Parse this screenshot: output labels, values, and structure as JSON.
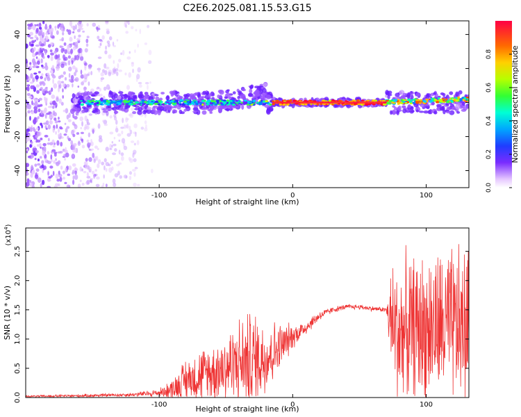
{
  "title": "C2E6.2025.081.15.53.G15",
  "colors": {
    "snr_line": "#ee3333",
    "axis": "#000000"
  },
  "chart_data": [
    {
      "type": "heatmap",
      "xlabel": "Height of straight line (km)",
      "ylabel": "Frequency (Hz)",
      "xlim": [
        -200,
        132
      ],
      "ylim": [
        -50,
        48
      ],
      "xticks": [
        -100,
        0,
        100
      ],
      "yticks": [
        -40,
        -20,
        0,
        20,
        40
      ],
      "colorbar": {
        "label": "Normalized spectral amplitude",
        "range": [
          0,
          1
        ],
        "ticks": [
          0.0,
          0.2,
          0.4,
          0.6,
          0.8
        ]
      },
      "description": "Scattered weak returns below about -110 km; concentrated band near 0 Hz from -160 km to 132 km; strongest (red) between -15 and 70 km"
    },
    {
      "type": "line",
      "xlabel": "Height of straight line (km)",
      "ylabel": "SNR (10 * v/v)",
      "scale_label": "(x10",
      "scale_exp": "4",
      "scale_close": ")",
      "xlim": [
        -200,
        132
      ],
      "ylim": [
        0,
        2.9
      ],
      "xticks": [
        -100,
        0,
        100
      ],
      "yticks": [
        "0.0",
        "0.5",
        "1.0",
        "1.5",
        "2.0",
        "2.5"
      ],
      "envelope": {
        "x": [
          -200,
          -160,
          -120,
          -100,
          -90,
          -80,
          -60,
          -40,
          -30,
          -20,
          -10,
          0,
          10,
          20,
          30,
          40,
          50,
          60,
          70,
          75,
          80,
          100,
          120,
          132
        ],
        "mean": [
          0.02,
          0.03,
          0.05,
          0.08,
          0.15,
          0.3,
          0.45,
          0.6,
          0.65,
          0.7,
          0.85,
          1.05,
          1.2,
          1.4,
          1.5,
          1.55,
          1.55,
          1.52,
          1.5,
          1.2,
          1.1,
          1.2,
          1.2,
          1.2
        ],
        "amp": [
          0.02,
          0.03,
          0.04,
          0.08,
          0.2,
          0.45,
          0.6,
          0.9,
          1.0,
          0.8,
          0.5,
          0.25,
          0.15,
          0.1,
          0.06,
          0.05,
          0.05,
          0.05,
          0.05,
          1.4,
          1.5,
          1.5,
          1.6,
          1.6
        ]
      }
    }
  ]
}
